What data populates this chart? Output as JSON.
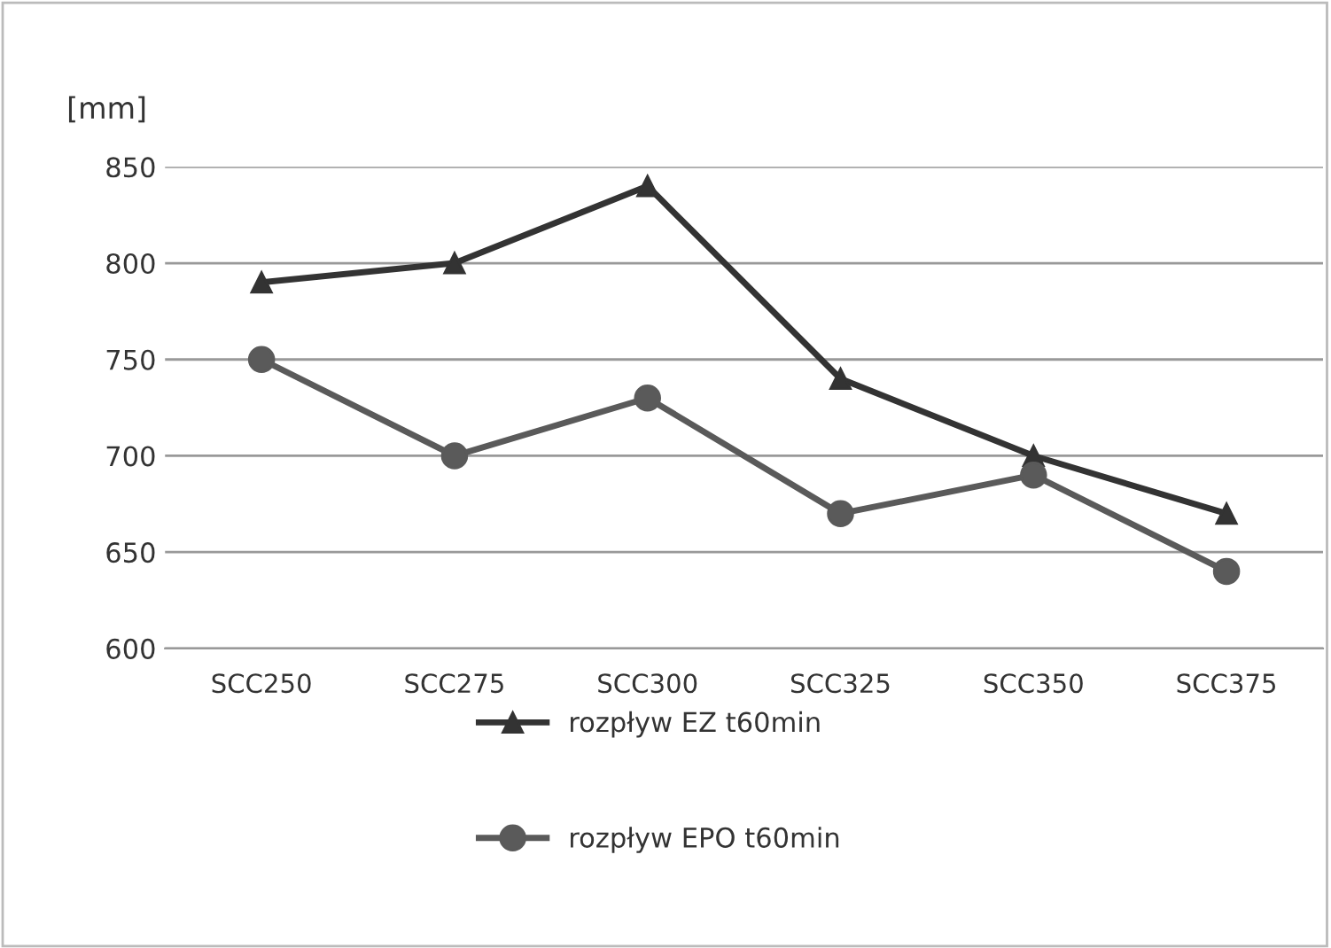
{
  "chart_data": {
    "type": "line",
    "ylabel": "[mm]",
    "categories": [
      "SCC250",
      "SCC275",
      "SCC300",
      "SCC325",
      "SCC350",
      "SCC375"
    ],
    "series": [
      {
        "name": "rozpływ EZ t60min",
        "color": "#333333",
        "marker": "triangle",
        "values": [
          790,
          800,
          840,
          740,
          700,
          670
        ]
      },
      {
        "name": "rozpływ EPO t60min",
        "color": "#5a5a5a",
        "marker": "circle",
        "values": [
          750,
          700,
          730,
          670,
          690,
          640
        ]
      }
    ],
    "ylim": [
      600,
      850
    ],
    "yticks": [
      600,
      650,
      700,
      750,
      800,
      850
    ],
    "grid": "y",
    "legend": "bottom",
    "line_style": "solid"
  }
}
